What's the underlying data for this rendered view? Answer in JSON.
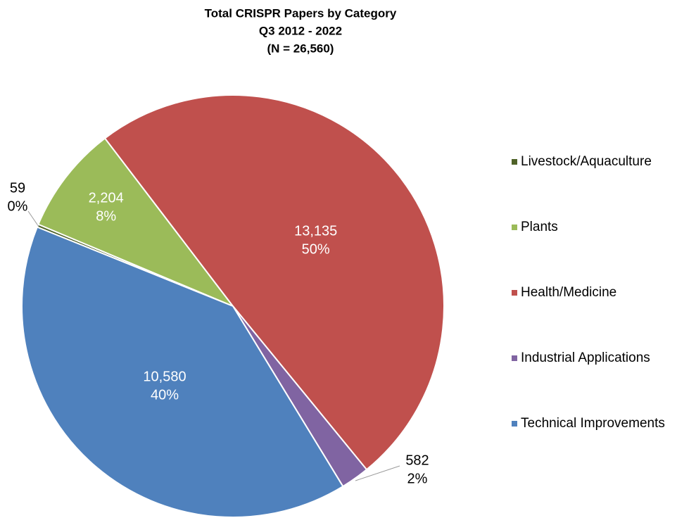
{
  "chart_data": {
    "type": "pie",
    "title": "Total CRISPR Papers by Category",
    "subtitle": [
      "Q3 2012 - 2022",
      "(N = 26,560)"
    ],
    "categories": [
      "Livestock/Aquaculture",
      "Plants",
      "Health/Medicine",
      "Industrial Applications",
      "Technical Improvements"
    ],
    "values": [
      59,
      2204,
      13135,
      582,
      10580
    ],
    "value_labels": [
      "59",
      "2,204",
      "13,135",
      "582",
      "10,580"
    ],
    "percents": [
      0,
      8,
      50,
      2,
      40
    ],
    "percent_labels": [
      "0%",
      "8%",
      "50%",
      "2%",
      "40%"
    ],
    "colors": [
      "#4f6228",
      "#9bbb59",
      "#c0504d",
      "#8064a2",
      "#4f81bd"
    ],
    "legend": "right"
  }
}
